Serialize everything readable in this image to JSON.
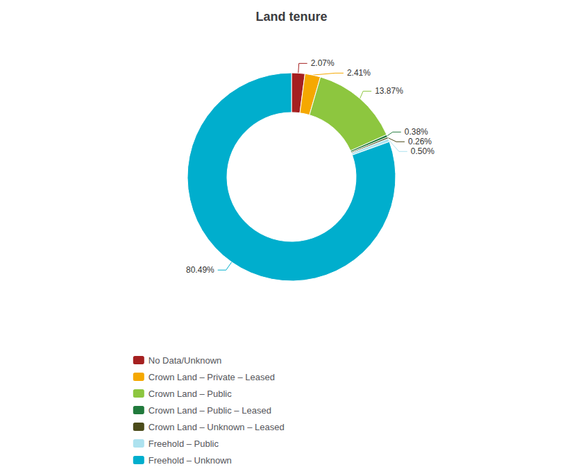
{
  "chart_data": {
    "type": "pie",
    "title": "Land tenure",
    "categories": [
      "No Data/Unknown",
      "Crown Land – Private – Leased",
      "Crown Land – Public",
      "Crown Land – Public – Leased",
      "Crown Land – Unknown – Leased",
      "Freehold – Public",
      "Freehold – Unknown"
    ],
    "values": [
      2.07,
      2.41,
      13.87,
      0.38,
      0.26,
      0.5,
      80.49
    ],
    "value_labels": [
      "2.07%",
      "2.41%",
      "13.87%",
      "0.38%",
      "0.26%",
      "0.50%",
      "80.49%"
    ],
    "colors": [
      "#A52020",
      "#F5A800",
      "#8DC63F",
      "#217A3C",
      "#4B4B1A",
      "#ADE2EF",
      "#00AECD"
    ],
    "data_labels": true,
    "legend": "bottom"
  }
}
